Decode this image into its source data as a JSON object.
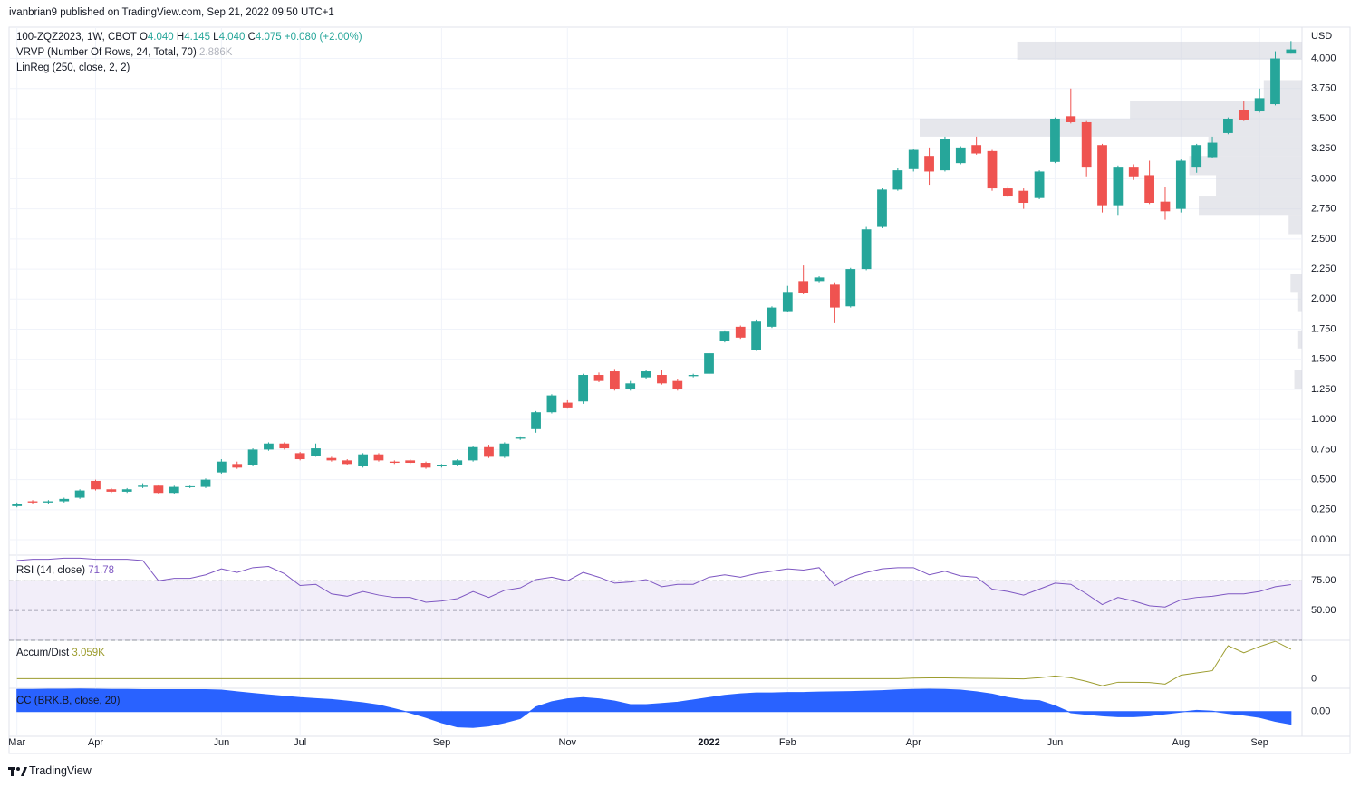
{
  "header": "ivanbrian9 published on TradingView.com, Sep 21, 2022 09:50 UTC+1",
  "footer": "TradingView",
  "chart_data": [
    {
      "type": "candlestick",
      "symbol": "100-ZQZ2023, 1W, CBOT",
      "ohlc_legend": [
        {
          "key": "O",
          "value": "4.040"
        },
        {
          "key": "H",
          "value": "4.145"
        },
        {
          "key": "L",
          "value": "4.040"
        },
        {
          "key": "C",
          "value": "4.075"
        }
      ],
      "change": "+0.080 (+2.00%)",
      "indicators": [
        {
          "name": "VRVP (Number Of Rows, 24, Total, 70)",
          "value": "2.886K"
        },
        {
          "name": "LinReg (250, close, 2, 2)"
        }
      ],
      "currency": "USD",
      "up_color": "#26a69a",
      "down_color": "#ef5350",
      "grid": true,
      "open": [
        0.28,
        0.32,
        0.31,
        0.32,
        0.35,
        0.49,
        0.42,
        0.4,
        0.44,
        0.45,
        0.39,
        0.44,
        0.44,
        0.56,
        0.63,
        0.62,
        0.75,
        0.8,
        0.72,
        0.7,
        0.68,
        0.66,
        0.61,
        0.71,
        0.65,
        0.66,
        0.64,
        0.61,
        0.62,
        0.66,
        0.77,
        0.69,
        0.84,
        0.92,
        1.06,
        1.14,
        1.15,
        1.37,
        1.4,
        1.25,
        1.35,
        1.37,
        1.32,
        1.36,
        1.38,
        1.65,
        1.77,
        1.58,
        1.77,
        1.9,
        2.15,
        2.15,
        2.12,
        1.94,
        2.25,
        2.6,
        2.91,
        3.08,
        3.19,
        3.07,
        3.13,
        3.28,
        3.23,
        2.92,
        2.9,
        2.84,
        3.14,
        3.52,
        3.47,
        3.28,
        2.78,
        3.1,
        3.03,
        2.81,
        2.75,
        3.1,
        3.18,
        3.38,
        3.57,
        3.56,
        3.62,
        4.04
      ],
      "high": [
        0.31,
        0.33,
        0.33,
        0.35,
        0.42,
        0.5,
        0.43,
        0.43,
        0.47,
        0.46,
        0.45,
        0.45,
        0.51,
        0.67,
        0.65,
        0.76,
        0.81,
        0.81,
        0.73,
        0.8,
        0.69,
        0.67,
        0.72,
        0.72,
        0.66,
        0.67,
        0.65,
        0.63,
        0.67,
        0.78,
        0.79,
        0.81,
        0.86,
        1.07,
        1.21,
        1.16,
        1.38,
        1.39,
        1.42,
        1.32,
        1.41,
        1.41,
        1.34,
        1.38,
        1.56,
        1.74,
        1.78,
        1.83,
        1.94,
        2.11,
        2.28,
        2.19,
        2.14,
        2.26,
        2.6,
        2.92,
        3.09,
        3.25,
        3.26,
        3.35,
        3.27,
        3.35,
        3.24,
        2.94,
        2.92,
        3.07,
        3.51,
        3.75,
        3.48,
        3.29,
        3.11,
        3.12,
        3.15,
        2.93,
        3.16,
        3.29,
        3.35,
        3.51,
        3.65,
        3.75,
        4.06,
        4.145
      ],
      "low": [
        0.27,
        0.3,
        0.3,
        0.31,
        0.34,
        0.41,
        0.39,
        0.39,
        0.43,
        0.38,
        0.38,
        0.43,
        0.43,
        0.55,
        0.59,
        0.61,
        0.74,
        0.75,
        0.66,
        0.69,
        0.65,
        0.62,
        0.6,
        0.65,
        0.63,
        0.63,
        0.59,
        0.6,
        0.61,
        0.65,
        0.68,
        0.68,
        0.83,
        0.89,
        1.05,
        1.09,
        1.13,
        1.31,
        1.24,
        1.24,
        1.34,
        1.29,
        1.24,
        1.35,
        1.37,
        1.64,
        1.67,
        1.57,
        1.76,
        1.89,
        2.04,
        2.14,
        1.8,
        1.93,
        2.24,
        2.59,
        2.9,
        3.06,
        2.95,
        3.06,
        3.12,
        3.2,
        2.9,
        2.85,
        2.75,
        2.83,
        3.13,
        3.46,
        3.02,
        2.72,
        2.7,
        2.99,
        2.79,
        2.66,
        2.72,
        3.05,
        3.17,
        3.37,
        3.48,
        3.55,
        3.61,
        4.04
      ],
      "close": [
        0.3,
        0.31,
        0.32,
        0.34,
        0.41,
        0.42,
        0.4,
        0.42,
        0.45,
        0.39,
        0.44,
        0.445,
        0.5,
        0.65,
        0.6,
        0.75,
        0.8,
        0.76,
        0.67,
        0.76,
        0.66,
        0.63,
        0.71,
        0.66,
        0.64,
        0.64,
        0.6,
        0.62,
        0.66,
        0.77,
        0.69,
        0.8,
        0.85,
        1.06,
        1.2,
        1.1,
        1.37,
        1.32,
        1.25,
        1.3,
        1.4,
        1.3,
        1.25,
        1.37,
        1.55,
        1.73,
        1.68,
        1.82,
        1.93,
        2.06,
        2.05,
        2.18,
        1.93,
        2.25,
        2.58,
        2.91,
        3.07,
        3.24,
        3.06,
        3.33,
        3.26,
        3.21,
        2.92,
        2.86,
        2.8,
        3.06,
        3.5,
        3.47,
        3.1,
        2.78,
        3.1,
        3.02,
        2.8,
        2.73,
        3.15,
        3.28,
        3.3,
        3.5,
        3.49,
        3.67,
        4.0,
        4.075
      ],
      "xlim": [
        -0.5,
        81.7
      ],
      "xticks": [
        {
          "value": 0,
          "label": "Mar"
        },
        {
          "value": 5,
          "label": "Apr"
        },
        {
          "value": 13,
          "label": "Jun"
        },
        {
          "value": 18,
          "label": "Jul"
        },
        {
          "value": 27,
          "label": "Sep"
        },
        {
          "value": 35,
          "label": "Nov"
        },
        {
          "value": 44,
          "label": "2022"
        },
        {
          "value": 49,
          "label": "Feb"
        },
        {
          "value": 57,
          "label": "Apr"
        },
        {
          "value": 66,
          "label": "Jun"
        },
        {
          "value": 74,
          "label": "Aug"
        },
        {
          "value": 79,
          "label": "Sep"
        }
      ],
      "ylim": [
        -0.12,
        4.26
      ],
      "yticks": [
        {
          "value": 0,
          "label": "0.000"
        },
        {
          "value": 0.25,
          "label": "0.250"
        },
        {
          "value": 0.5,
          "label": "0.500"
        },
        {
          "value": 0.75,
          "label": "0.750"
        },
        {
          "value": 1,
          "label": "1.000"
        },
        {
          "value": 1.25,
          "label": "1.250"
        },
        {
          "value": 1.5,
          "label": "1.500"
        },
        {
          "value": 1.75,
          "label": "1.750"
        },
        {
          "value": 2,
          "label": "2.000"
        },
        {
          "value": 2.25,
          "label": "2.250"
        },
        {
          "value": 2.5,
          "label": "2.500"
        },
        {
          "value": 2.75,
          "label": "2.750"
        },
        {
          "value": 3,
          "label": "3.000"
        },
        {
          "value": 3.25,
          "label": "3.250"
        },
        {
          "value": 3.5,
          "label": "3.500"
        },
        {
          "value": 3.75,
          "label": "3.750"
        },
        {
          "value": 4,
          "label": "4.000"
        }
      ],
      "volume_profile": {
        "color": "#d1d4dc",
        "rows": [
          {
            "low": 3.99,
            "high": 4.14,
            "volume": 14.9
          },
          {
            "low": 3.65,
            "high": 3.82,
            "volume": 2.0
          },
          {
            "low": 3.5,
            "high": 3.65,
            "volume": 9.0
          },
          {
            "low": 3.35,
            "high": 3.5,
            "volume": 20.0
          },
          {
            "low": 3.19,
            "high": 3.35,
            "volume": 4.9
          },
          {
            "low": 3.03,
            "high": 3.19,
            "volume": 5.9
          },
          {
            "low": 2.86,
            "high": 3.03,
            "volume": 4.5
          },
          {
            "low": 2.7,
            "high": 2.86,
            "volume": 5.4
          },
          {
            "low": 2.54,
            "high": 2.7,
            "volume": 0.7
          },
          {
            "low": 2.06,
            "high": 2.21,
            "volume": 0.6
          },
          {
            "low": 1.9,
            "high": 2.06,
            "volume": 0.2
          },
          {
            "low": 1.59,
            "high": 1.74,
            "volume": 0.2
          },
          {
            "low": 1.25,
            "high": 1.41,
            "volume": 0.4
          }
        ]
      }
    },
    {
      "type": "line",
      "title": "RSI (14, close)",
      "current_label": "71.78",
      "color": "#7e57c2",
      "bands": [
        75,
        25
      ],
      "values": [
        92,
        93,
        93,
        94,
        94,
        93,
        93,
        93,
        92,
        75,
        77,
        77,
        80,
        85,
        82,
        86,
        87,
        81,
        71,
        72,
        64,
        62,
        66,
        63,
        61,
        61,
        57,
        58,
        60,
        66,
        61,
        67,
        69,
        76,
        78,
        75,
        82,
        78,
        73,
        74,
        76,
        70,
        72,
        72,
        78,
        80,
        78,
        81,
        83,
        85,
        84,
        86,
        71,
        78,
        82,
        85,
        86,
        86,
        80,
        83,
        79,
        78,
        68,
        66,
        63,
        68,
        73,
        72,
        64,
        55,
        61,
        58,
        54,
        53,
        59,
        61,
        62,
        64,
        64,
        66,
        70,
        71.78
      ],
      "ylim": [
        25,
        95
      ],
      "yticks": [
        {
          "value": 75,
          "label": "75.00"
        },
        {
          "value": 50,
          "label": "50.00"
        }
      ]
    },
    {
      "type": "line",
      "title": "Accum/Dist",
      "current_label": "3.059K",
      "color": "#9c9c2e",
      "values": [
        0,
        0,
        0,
        0,
        0,
        0,
        0,
        0,
        0,
        0,
        0,
        0,
        0,
        0,
        0,
        0,
        0,
        0,
        0,
        0,
        0,
        0,
        0,
        0,
        0,
        0,
        0,
        0,
        0,
        0,
        0,
        0,
        0,
        0,
        0,
        0,
        0,
        0,
        0,
        0,
        0,
        0,
        0,
        0,
        0,
        0,
        0,
        0,
        0,
        0,
        0,
        0,
        0,
        0,
        0,
        0,
        0,
        60,
        80,
        80,
        60,
        40,
        20,
        0,
        -20,
        100,
        280,
        100,
        -280,
        -740,
        -370,
        -370,
        -400,
        -560,
        370,
        600,
        830,
        3430,
        2690,
        3340,
        3890,
        3059
      ],
      "ylim": [
        -1000,
        3900
      ],
      "yticks": [
        0
      ]
    },
    {
      "type": "area",
      "title": "CC (BRK.B, close, 20)",
      "color": "#2962ff",
      "values": [
        0.95,
        0.95,
        0.96,
        0.96,
        0.97,
        0.96,
        0.95,
        0.95,
        0.94,
        0.94,
        0.94,
        0.94,
        0.94,
        0.92,
        0.85,
        0.78,
        0.72,
        0.66,
        0.6,
        0.56,
        0.52,
        0.45,
        0.38,
        0.28,
        0.12,
        -0.05,
        -0.25,
        -0.48,
        -0.66,
        -0.68,
        -0.62,
        -0.48,
        -0.3,
        0.2,
        0.42,
        0.55,
        0.6,
        0.55,
        0.45,
        0.3,
        0.3,
        0.35,
        0.4,
        0.5,
        0.6,
        0.7,
        0.76,
        0.8,
        0.8,
        0.82,
        0.82,
        0.84,
        0.85,
        0.86,
        0.88,
        0.9,
        0.93,
        0.95,
        0.96,
        0.95,
        0.92,
        0.85,
        0.75,
        0.6,
        0.5,
        0.47,
        0.25,
        -0.05,
        -0.12,
        -0.18,
        -0.22,
        -0.22,
        -0.18,
        -0.1,
        -0.02,
        0.05,
        0.02,
        -0.08,
        -0.15,
        -0.25,
        -0.42,
        -0.54
      ],
      "ylim": [
        -0.75,
        1.0
      ],
      "yticks": [
        {
          "value": 0,
          "label": "0.00"
        }
      ]
    }
  ]
}
